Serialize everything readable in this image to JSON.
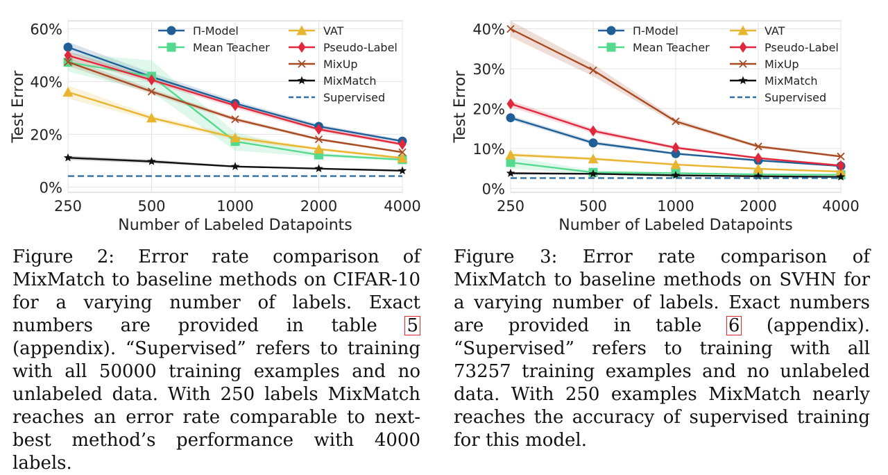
{
  "captions": [
    {
      "text_before": "Figure 2: Error rate comparison of MixMatch to baseline methods on CIFAR-10 for a varying number of labels. Exact numbers are provided in table ",
      "ref": "5",
      "text_after": " (appendix). “Supervised” refers to training with all 50000 training examples and no unlabeled data. With 250 labels MixMatch reaches an error rate comparable to next-best method’s performance with 4000 labels."
    },
    {
      "text_before": "Figure 3: Error rate comparison of MixMatch to baseline methods on SVHN for a varying number of labels. Exact numbers are provided in table ",
      "ref": "6",
      "text_after": " (appendix). “Supervised” refers to training with all 73257 training examples and no unlabeled data. With 250 examples MixMatch nearly reaches the accuracy of supervised training for this model."
    }
  ],
  "chart_data": [
    {
      "type": "line",
      "title": "",
      "xlabel": "Number of Labeled Datapoints",
      "ylabel": "Test Error",
      "x": [
        250,
        500,
        1000,
        2000,
        4000
      ],
      "x_tick_labels": [
        "250",
        "500",
        "1000",
        "2000",
        "4000"
      ],
      "x_scale": "log",
      "ylim": [
        -2,
        63
      ],
      "y_ticks": [
        0,
        20,
        40,
        60
      ],
      "y_tick_labels": [
        "0%",
        "20%",
        "40%",
        "60%"
      ],
      "grid": true,
      "legend_placement": "top",
      "series": [
        {
          "name": "Π-Model",
          "color": "#1f5f96",
          "marker": "circle",
          "values": [
            53.0,
            41.8,
            31.7,
            23.0,
            17.4
          ],
          "band": [
            2.0,
            1.5,
            1.0,
            0.8,
            0.6
          ]
        },
        {
          "name": "Mean Teacher",
          "color": "#55d98f",
          "marker": "square",
          "values": [
            47.3,
            42.0,
            17.3,
            12.2,
            10.4
          ],
          "band": [
            3.5,
            6.0,
            3.5,
            0.8,
            0.5
          ]
        },
        {
          "name": "VAT",
          "color": "#e8b530",
          "marker": "triangle",
          "values": [
            36.0,
            26.2,
            18.7,
            14.4,
            11.0
          ],
          "band": [
            2.5,
            1.0,
            1.0,
            0.6,
            0.5
          ]
        },
        {
          "name": "Pseudo-Label",
          "color": "#e0283c",
          "marker": "diamond",
          "values": [
            49.9,
            40.6,
            30.9,
            21.9,
            16.2
          ],
          "band": [
            1.5,
            1.0,
            1.0,
            0.8,
            0.6
          ]
        },
        {
          "name": "MixUp",
          "color": "#a84a22",
          "marker": "x",
          "values": [
            47.4,
            36.2,
            25.7,
            18.1,
            13.2
          ],
          "band": [
            1.5,
            1.0,
            0.8,
            0.5,
            0.4
          ]
        },
        {
          "name": "MixMatch",
          "color": "#111111",
          "marker": "star",
          "values": [
            11.1,
            9.7,
            7.8,
            7.0,
            6.2
          ],
          "band": [
            0.8,
            0.7,
            0.3,
            0.2,
            0.2
          ]
        },
        {
          "name": "Supervised",
          "color": "#2e6fa8",
          "marker": "none",
          "dashed": true,
          "values": [
            4.17,
            4.17,
            4.17,
            4.17,
            4.17
          ]
        }
      ]
    },
    {
      "type": "line",
      "title": "",
      "xlabel": "Number of Labeled Datapoints",
      "ylabel": "Test Error",
      "x": [
        250,
        500,
        1000,
        2000,
        4000
      ],
      "x_tick_labels": [
        "250",
        "500",
        "1000",
        "2000",
        "4000"
      ],
      "x_scale": "log",
      "ylim": [
        -1,
        42
      ],
      "y_ticks": [
        0,
        10,
        20,
        30,
        40
      ],
      "y_tick_labels": [
        "0%",
        "10%",
        "20%",
        "30%",
        "40%"
      ],
      "grid": true,
      "legend_placement": "top",
      "series": [
        {
          "name": "Π-Model",
          "color": "#1f5f96",
          "marker": "circle",
          "values": [
            17.7,
            11.4,
            8.7,
            7.0,
            5.6
          ],
          "band": [
            0.6,
            0.5,
            0.3,
            0.2,
            0.2
          ]
        },
        {
          "name": "Mean Teacher",
          "color": "#55d98f",
          "marker": "square",
          "values": [
            6.5,
            4.0,
            3.8,
            3.5,
            3.4
          ],
          "band": [
            1.5,
            0.5,
            0.3,
            0.2,
            0.2
          ]
        },
        {
          "name": "VAT",
          "color": "#e8b530",
          "marker": "triangle",
          "values": [
            8.4,
            7.4,
            5.98,
            4.9,
            4.2
          ],
          "band": [
            0.5,
            0.4,
            0.3,
            0.2,
            0.2
          ]
        },
        {
          "name": "Pseudo-Label",
          "color": "#e0283c",
          "marker": "diamond",
          "values": [
            21.2,
            14.4,
            10.2,
            7.6,
            5.7
          ],
          "band": [
            0.8,
            0.6,
            0.4,
            0.3,
            0.3
          ]
        },
        {
          "name": "MixUp",
          "color": "#a84a22",
          "marker": "x",
          "values": [
            39.97,
            29.6,
            16.8,
            10.5,
            8.0
          ],
          "band": [
            2.0,
            1.5,
            0.6,
            0.4,
            0.3
          ]
        },
        {
          "name": "MixMatch",
          "color": "#111111",
          "marker": "star",
          "values": [
            3.78,
            3.64,
            3.27,
            3.04,
            2.89
          ],
          "band": [
            0.3,
            0.2,
            0.1,
            0.1,
            0.1
          ]
        },
        {
          "name": "Supervised",
          "color": "#2e6fa8",
          "marker": "none",
          "dashed": true,
          "values": [
            2.59,
            2.59,
            2.59,
            2.59,
            2.59
          ]
        }
      ]
    }
  ]
}
